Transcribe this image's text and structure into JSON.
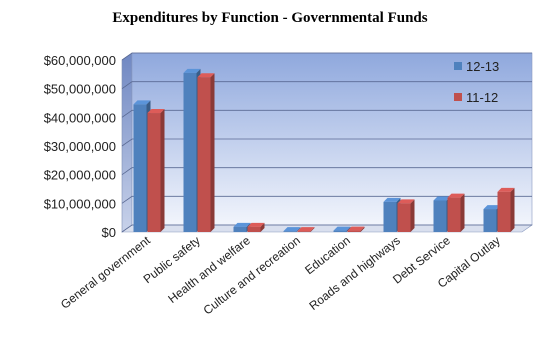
{
  "chart_data": {
    "type": "bar",
    "title": "Expenditures by Function - Governmental Funds",
    "xlabel": "",
    "ylabel": "",
    "categories": [
      "General government",
      "Public safety",
      "Health and welfare",
      "Culture and recreation",
      "Education",
      "Roads and highways",
      "Debt Service",
      "Capital Outlay"
    ],
    "series": [
      {
        "name": "12-13",
        "color": "#4f81bd",
        "values": [
          44500000,
          55500000,
          1800000,
          300000,
          500000,
          10500000,
          11000000,
          8000000
        ]
      },
      {
        "name": "11-12",
        "color": "#c0504d",
        "values": [
          41500000,
          54000000,
          1800000,
          300000,
          500000,
          10000000,
          12000000,
          14000000
        ]
      }
    ],
    "ylim": [
      0,
      60000000
    ],
    "yticks": [
      "$0",
      "$10,000,000",
      "$20,000,000",
      "$30,000,000",
      "$40,000,000",
      "$50,000,000",
      "$60,000,000"
    ],
    "grid": true,
    "legend_position": "top-right"
  }
}
